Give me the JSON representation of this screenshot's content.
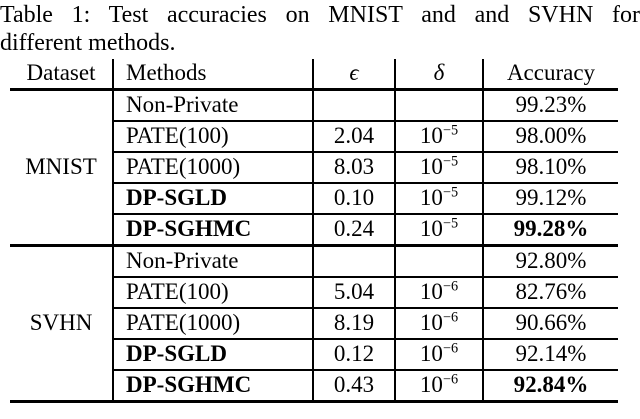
{
  "caption": {
    "line1": "Table 1: Test accuracies on MNIST and and SVHN for",
    "line2": "different methods."
  },
  "table": {
    "headers": {
      "dataset": "Dataset",
      "methods": "Methods",
      "epsilon": "ϵ",
      "delta": "δ",
      "accuracy": "Accuracy"
    },
    "groups": [
      {
        "dataset": "MNIST",
        "rows": [
          {
            "method": "Non-Private",
            "epsilon": "",
            "delta_base": "",
            "delta_exp": "",
            "accuracy": "99.23%"
          },
          {
            "method": "PATE(100)",
            "epsilon": "2.04",
            "delta_base": "10",
            "delta_exp": "−5",
            "accuracy": "98.00%"
          },
          {
            "method": "PATE(1000)",
            "epsilon": "8.03",
            "delta_base": "10",
            "delta_exp": "−5",
            "accuracy": "98.10%"
          },
          {
            "method": "DP-SGLD",
            "epsilon": "0.10",
            "delta_base": "10",
            "delta_exp": "−5",
            "accuracy": "99.12%"
          },
          {
            "method": "DP-SGHMC",
            "epsilon": "0.24",
            "delta_base": "10",
            "delta_exp": "−5",
            "accuracy": "99.28%"
          }
        ]
      },
      {
        "dataset": "SVHN",
        "rows": [
          {
            "method": "Non-Private",
            "epsilon": "",
            "delta_base": "",
            "delta_exp": "",
            "accuracy": "92.80%"
          },
          {
            "method": "PATE(100)",
            "epsilon": "5.04",
            "delta_base": "10",
            "delta_exp": "−6",
            "accuracy": "82.76%"
          },
          {
            "method": "PATE(1000)",
            "epsilon": "8.19",
            "delta_base": "10",
            "delta_exp": "−6",
            "accuracy": "90.66%"
          },
          {
            "method": "DP-SGLD",
            "epsilon": "0.12",
            "delta_base": "10",
            "delta_exp": "−6",
            "accuracy": "92.14%"
          },
          {
            "method": "DP-SGHMC",
            "epsilon": "0.43",
            "delta_base": "10",
            "delta_exp": "−6",
            "accuracy": "92.84%"
          }
        ]
      }
    ]
  }
}
